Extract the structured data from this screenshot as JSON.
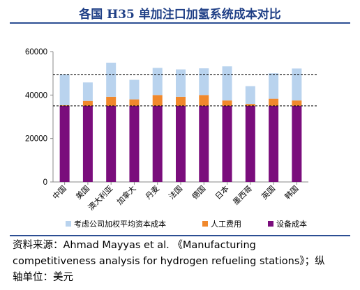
{
  "title": "各国 H35 单加注口加氢系统成本对比",
  "source": {
    "line1": "资料来源：Ahmad Mayyas et al. 《Manufacturing",
    "line2": "competitiveness analysis for hydrogen refueling stations》；纵",
    "line3": "轴单位：美元"
  },
  "colors": {
    "equipment": "#7a0d7c",
    "labor": "#f0882c",
    "capital": "#b9d3ee",
    "refline": "#000000",
    "axis": "#888888",
    "title": "#1f3f86"
  },
  "chart_data": {
    "type": "bar",
    "stacked": true,
    "title": "各国 H35 单加注口加氢系统成本对比",
    "xlabel": "",
    "ylabel": "",
    "ylim": [
      0,
      60000
    ],
    "yticks": [
      "0",
      "20000",
      "40000",
      "60000"
    ],
    "categories": [
      "中国",
      "美国",
      "澳大利亚",
      "加拿大",
      "丹麦",
      "法国",
      "德国",
      "日本",
      "墨西哥",
      "英国",
      "韩国"
    ],
    "series": [
      {
        "name": "设备成本",
        "color": "#7a0d7c",
        "values": [
          35000,
          35000,
          35000,
          35000,
          35000,
          35000,
          35000,
          35000,
          35000,
          35000,
          35000
        ]
      },
      {
        "name": "人工费用",
        "color": "#f0882c",
        "values": [
          300,
          2300,
          4200,
          3000,
          5000,
          4200,
          5000,
          2500,
          900,
          3300,
          2500
        ]
      },
      {
        "name": "考虑公司加权平均资本成本",
        "color": "#b9d3ee",
        "values": [
          14200,
          8500,
          15700,
          9000,
          12500,
          12600,
          12300,
          15700,
          8200,
          11700,
          14700
        ]
      }
    ],
    "reference_lines": [
      49500,
      35000
    ],
    "legend": {
      "placement": "bottom",
      "items": [
        "考虑公司加权平均资本成本",
        "人工费用",
        "设备成本"
      ]
    },
    "grid": false
  }
}
